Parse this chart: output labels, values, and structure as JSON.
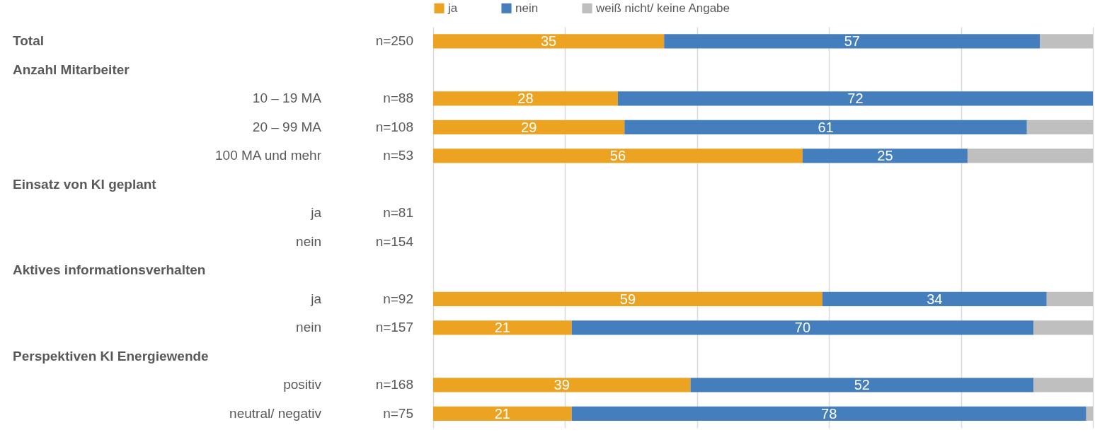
{
  "chart_data": {
    "type": "bar",
    "orientation": "horizontal",
    "stacked": true,
    "categories": [
      null,
      null,
      "10 – 19 MA",
      "20 – 99 MA",
      "100 MA und mehr",
      null,
      "ja",
      "nein",
      null,
      "ja",
      "nein",
      null,
      "positiv",
      "neutral/ negativ"
    ],
    "annotations": [
      "Total",
      "Anzahl Mitarbeiter",
      "Einsatz von KI geplant",
      "Aktives informationsverhalten",
      "Perspektiven KI Energiewende"
    ],
    "series": [
      {
        "name": "ja",
        "color": "#eda322",
        "values": [
          35,
          null,
          28,
          29,
          56,
          null,
          null,
          null,
          null,
          59,
          21,
          null,
          39,
          21
        ],
        "value_labels": [
          "35",
          null,
          "28",
          "29",
          "56",
          null,
          null,
          null,
          null,
          "59",
          "21",
          null,
          "39",
          "21"
        ]
      },
      {
        "name": "nein",
        "color": "#447ebd",
        "values": [
          57,
          null,
          72,
          61,
          25,
          null,
          null,
          null,
          null,
          34,
          70,
          null,
          52,
          78
        ],
        "value_labels": [
          "57",
          null,
          "72",
          "61",
          "25",
          null,
          null,
          null,
          null,
          "34",
          "70",
          null,
          "52",
          "78"
        ]
      },
      {
        "name": "weiß nicht/ keine Angabe",
        "color": "#bfbfbf",
        "values": [
          8,
          null,
          null,
          10,
          19,
          null,
          null,
          null,
          null,
          7,
          9,
          null,
          9,
          1
        ]
      }
    ],
    "y2_categories": [
      "n=250",
      null,
      "n=88",
      "n=108",
      "n=53",
      null,
      "n=81",
      "n=154",
      null,
      "n=92",
      "n=157",
      null,
      "n=168",
      "n=75"
    ],
    "xlim": [
      0,
      100
    ],
    "xticks": [
      {
        "value": 0,
        "label": null
      },
      {
        "value": 20,
        "label": null
      },
      {
        "value": 40,
        "label": null
      },
      {
        "value": 60,
        "label": null
      },
      {
        "value": 80,
        "label": null
      },
      {
        "value": 100,
        "label": null
      }
    ],
    "tick_labels": "y",
    "grid": "x",
    "legend": "top"
  }
}
